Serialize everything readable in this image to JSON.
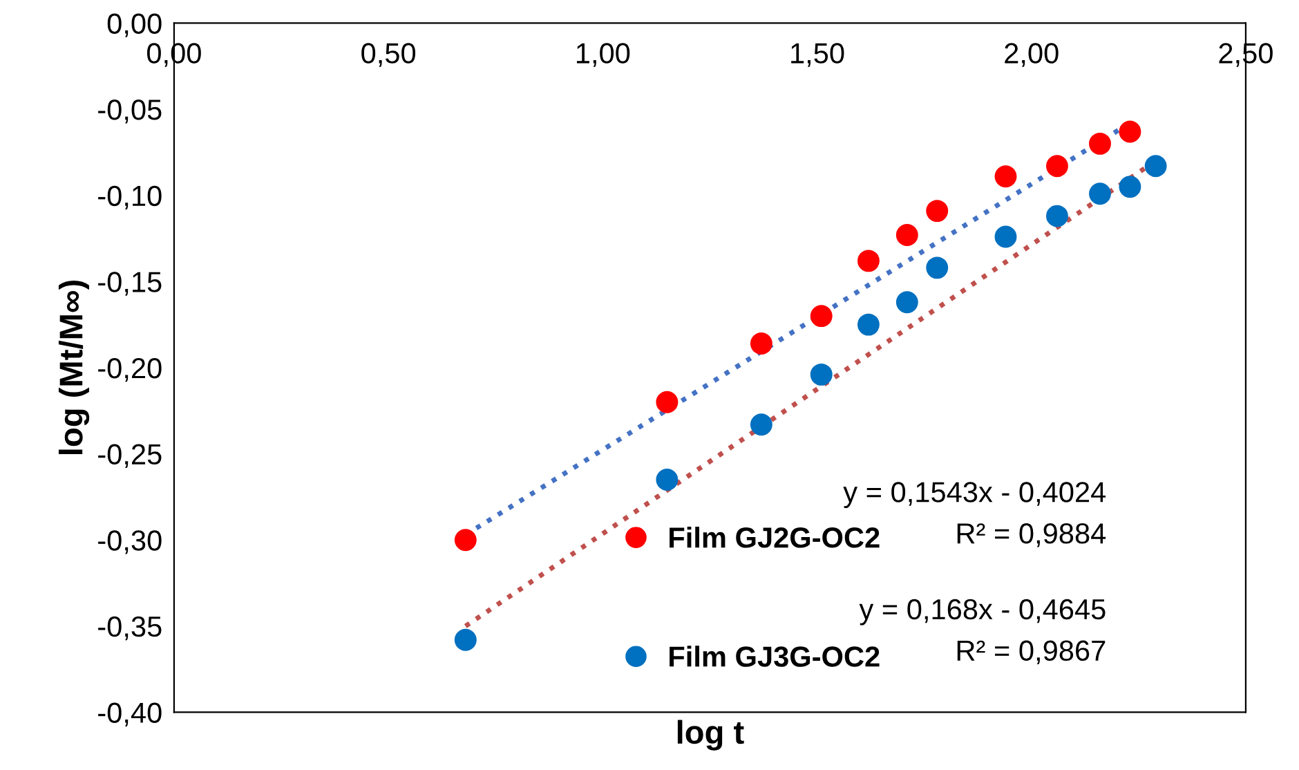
{
  "chart_data": {
    "type": "scatter",
    "xlabel": "log t",
    "ylabel": "log (Mt/M∞)",
    "xlim": [
      0,
      2.5
    ],
    "ylim": [
      -0.4,
      0
    ],
    "xticks": [
      {
        "value": 0,
        "label": "0,00"
      },
      {
        "value": 0.5,
        "label": "0,50"
      },
      {
        "value": 1,
        "label": "1,00"
      },
      {
        "value": 1.5,
        "label": "1,50"
      },
      {
        "value": 2,
        "label": "2,00"
      },
      {
        "value": 2.5,
        "label": "2,50"
      }
    ],
    "yticks": [
      {
        "value": -0.4,
        "label": "-0,40"
      },
      {
        "value": -0.35,
        "label": "-0,35"
      },
      {
        "value": -0.3,
        "label": "-0,30"
      },
      {
        "value": -0.25,
        "label": "-0,25"
      },
      {
        "value": -0.2,
        "label": "-0,20"
      },
      {
        "value": -0.15,
        "label": "-0,15"
      },
      {
        "value": -0.1,
        "label": "-0,10"
      },
      {
        "value": -0.05,
        "label": "-0,05"
      },
      {
        "value": 0,
        "label": "0,00"
      }
    ],
    "grid": false,
    "legend": "bottom right",
    "marker": "circle",
    "series": [
      {
        "name": "Film GJ2G-OC2",
        "color": "#ff0000",
        "x": [
          0.68,
          1.15,
          1.37,
          1.51,
          1.62,
          1.71,
          1.78,
          1.94,
          2.06,
          2.16,
          2.23
        ],
        "values": [
          -0.3,
          -0.22,
          -0.186,
          -0.17,
          -0.138,
          -0.123,
          -0.109,
          -0.089,
          -0.083,
          -0.07,
          -0.063
        ]
      },
      {
        "name": "Film GJ3G-OC2",
        "color": "#0070c0",
        "x": [
          0.68,
          1.15,
          1.37,
          1.51,
          1.62,
          1.71,
          1.78,
          1.94,
          2.06,
          2.16,
          2.23,
          2.29
        ],
        "values": [
          -0.358,
          -0.265,
          -0.233,
          -0.204,
          -0.175,
          -0.162,
          -0.142,
          -0.124,
          -0.112,
          -0.099,
          -0.095,
          -0.083
        ]
      },
      {
        "type": "line",
        "color": "#4472c4",
        "line_style": "dotted",
        "marker": "none",
        "x": [
          0.68,
          2.23
        ],
        "values": [
          -0.297,
          -0.058
        ]
      },
      {
        "type": "line",
        "color": "#c0504d",
        "line_style": "dotted",
        "marker": "none",
        "x": [
          0.68,
          2.29
        ],
        "values": [
          -0.35,
          -0.08
        ]
      }
    ],
    "annotations": [
      "y = 0,1543x - 0,4024",
      "R² = 0,9884",
      "y = 0,168x - 0,4645",
      "R² = 0,9867"
    ]
  }
}
